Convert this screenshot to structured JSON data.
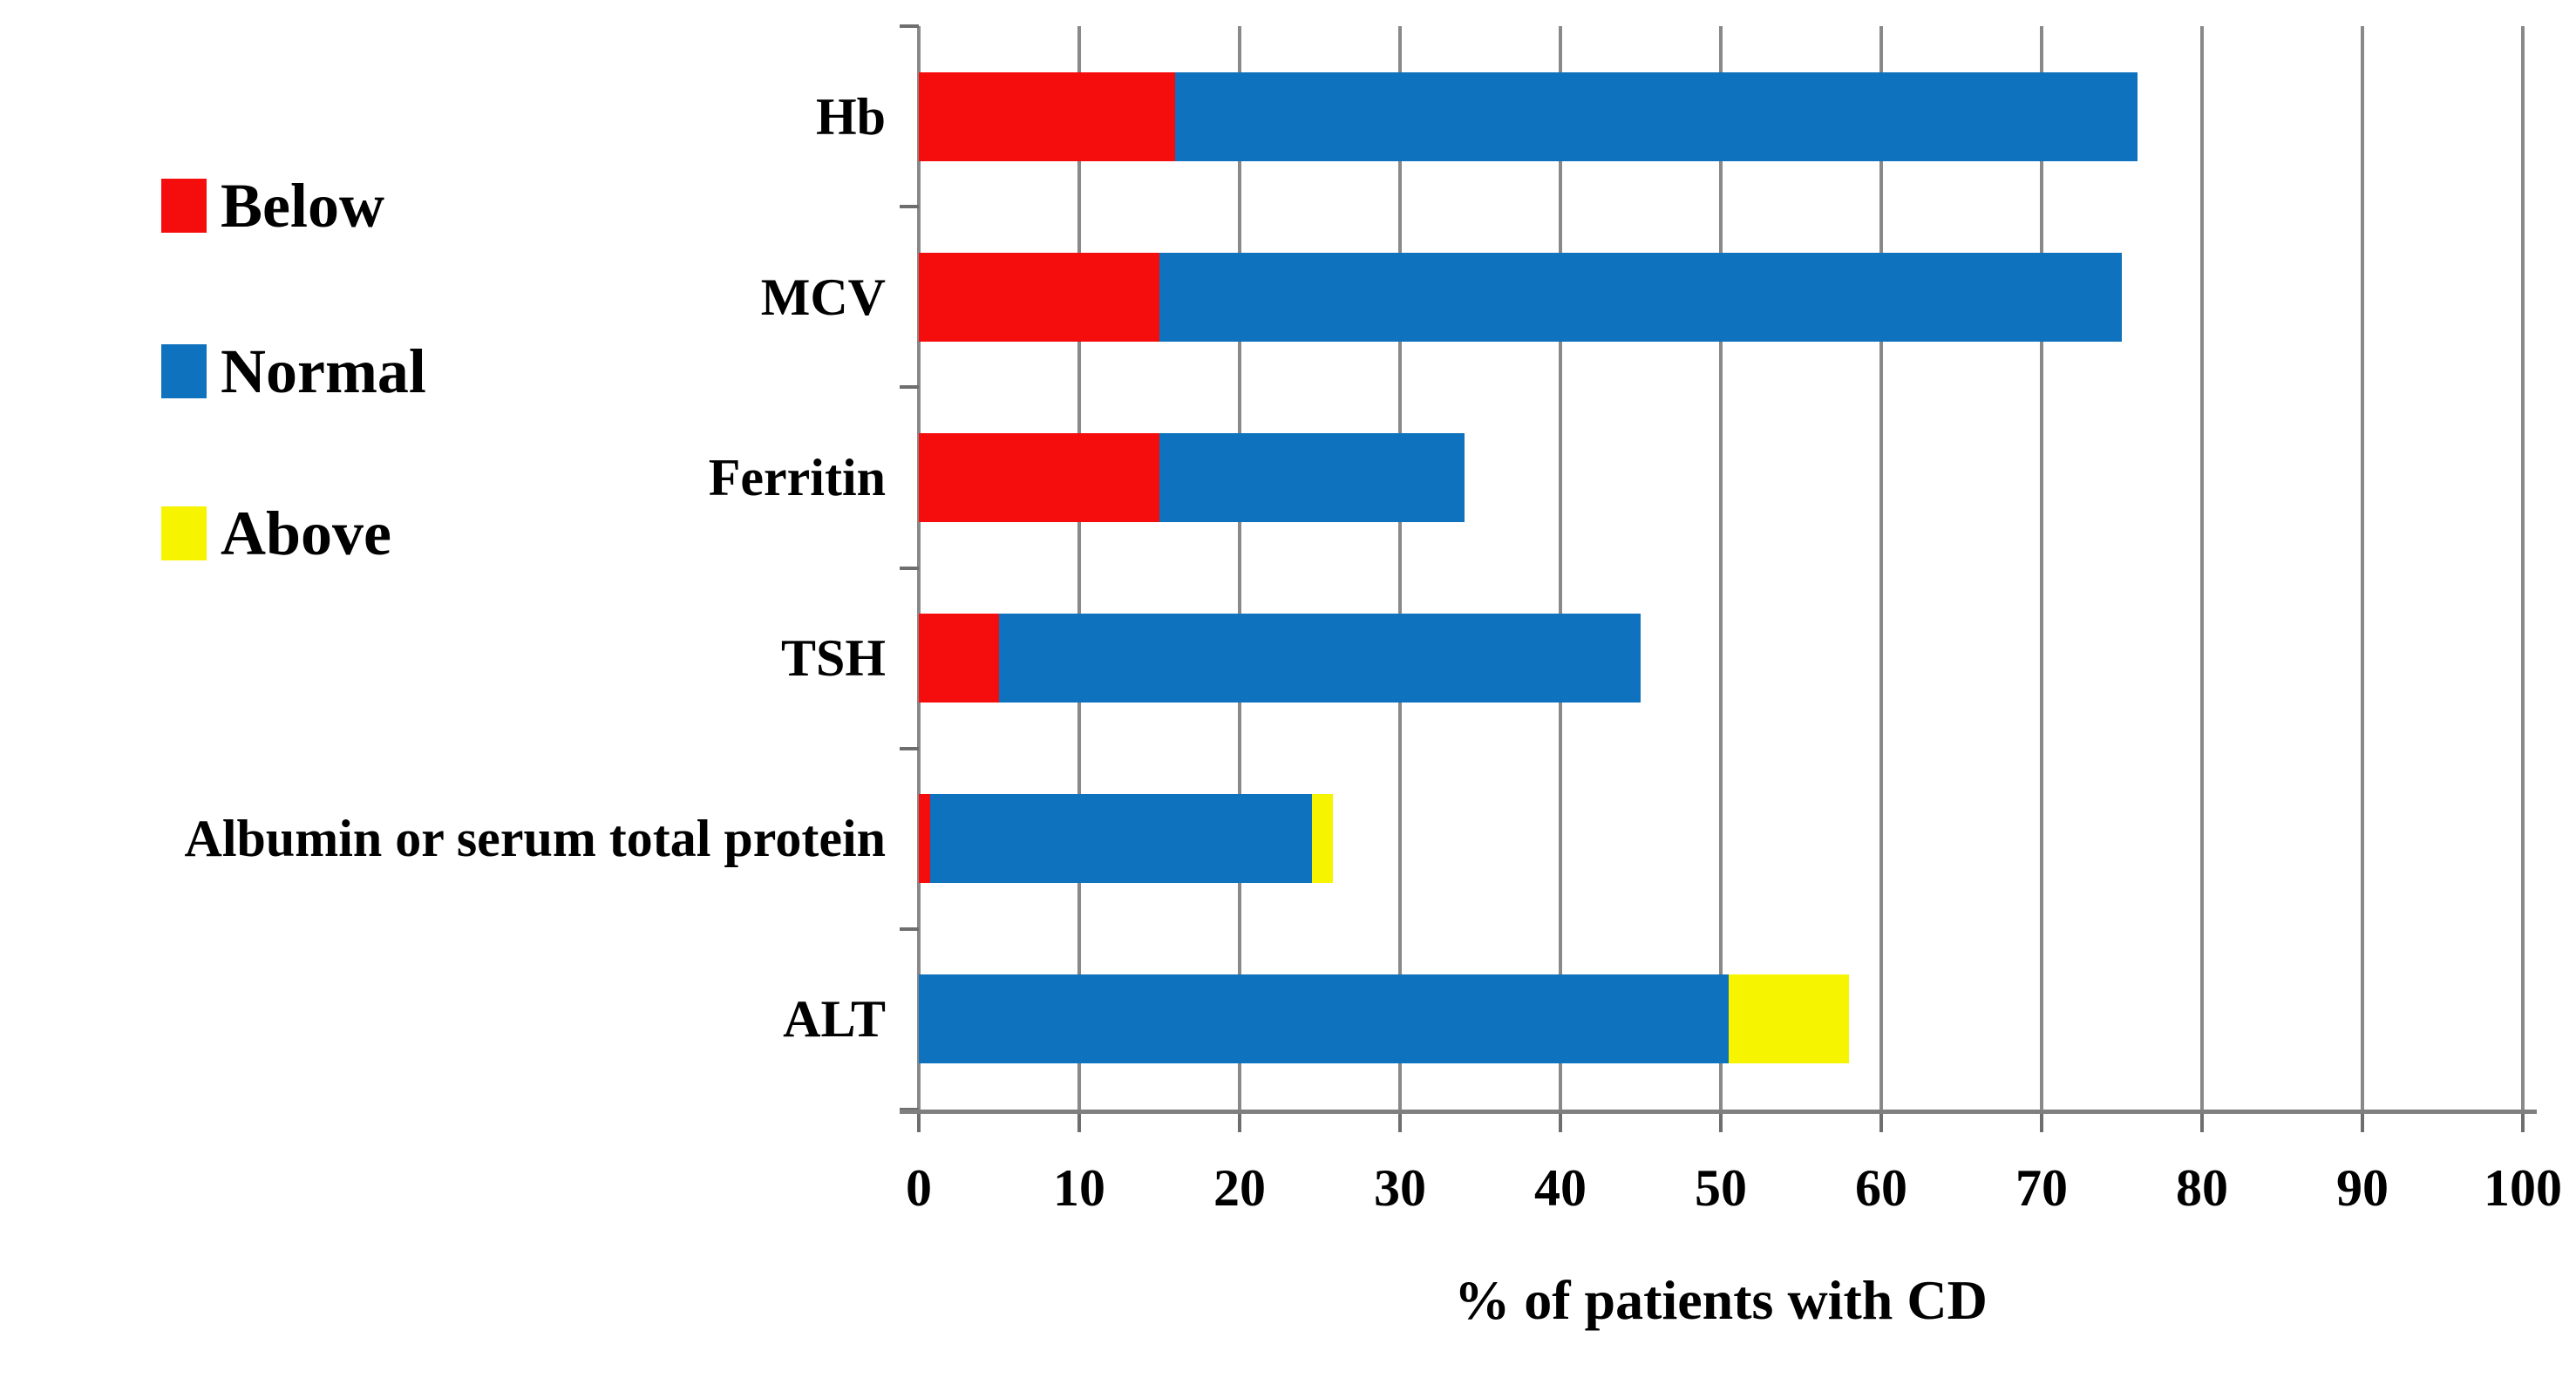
{
  "chart_data": {
    "type": "bar",
    "orientation": "horizontal_stacked",
    "title": "",
    "xlabel": "% of patients with CD",
    "ylabel": "",
    "xlim": [
      0,
      100
    ],
    "xticks": [
      0,
      10,
      20,
      30,
      40,
      50,
      60,
      70,
      80,
      90,
      100
    ],
    "grid": "vertical",
    "legend_position": "outside-upper-left",
    "categories": [
      "Hb",
      "MCV",
      "Ferritin",
      "TSH",
      "Albumin or serum total protein",
      "ALT"
    ],
    "series": [
      {
        "name": "Below",
        "color": "#F50D0D",
        "values": [
          16,
          15,
          15,
          5,
          0.7,
          0
        ]
      },
      {
        "name": "Normal",
        "color": "#0E72BE",
        "values": [
          60,
          60,
          19,
          40,
          23.8,
          50.5
        ]
      },
      {
        "name": "Above",
        "color": "#F7F400",
        "values": [
          0,
          0,
          0,
          0,
          1.3,
          7.5
        ]
      }
    ],
    "style": {
      "grid_color": "#898989",
      "axis_color": "#7F7F7F",
      "tick_color": "#6E6E6E",
      "text_color": "#000000",
      "background": "#FFFFFF"
    }
  }
}
